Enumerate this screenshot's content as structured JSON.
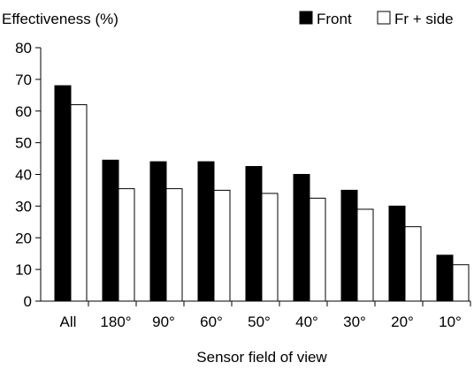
{
  "chart_data": {
    "type": "bar",
    "title": "",
    "ylabel": "Effectiveness (%)",
    "xlabel": "Sensor field of view",
    "categories": [
      "All",
      "180°",
      "90°",
      "60°",
      "50°",
      "40°",
      "30°",
      "20°",
      "10°"
    ],
    "series": [
      {
        "name": "Front",
        "color": "#000000",
        "values": [
          68,
          44.5,
          44,
          44,
          42.5,
          40,
          35,
          30,
          14.5
        ]
      },
      {
        "name": "Fr + side",
        "color": "#ffffff",
        "values": [
          62,
          35.5,
          35.5,
          35,
          34,
          32.5,
          29,
          23.5,
          11.5
        ]
      }
    ],
    "ylim": [
      0,
      80
    ],
    "yticks": [
      0,
      10,
      20,
      30,
      40,
      50,
      60,
      70,
      80
    ],
    "grid": false,
    "legend_position": "top-right"
  }
}
